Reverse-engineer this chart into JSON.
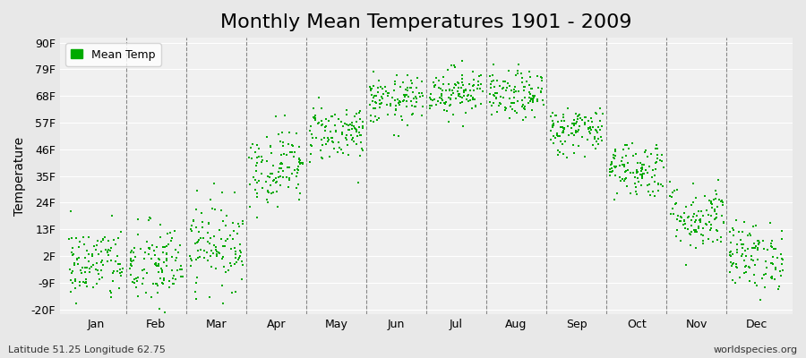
{
  "title": "Monthly Mean Temperatures 1901 - 2009",
  "ylabel": "Temperature",
  "xlabel": "",
  "ytick_labels": [
    "-20F",
    "-9F",
    "2F",
    "13F",
    "24F",
    "35F",
    "46F",
    "57F",
    "68F",
    "79F",
    "90F"
  ],
  "ytick_values": [
    -20,
    -9,
    2,
    13,
    24,
    35,
    46,
    57,
    68,
    79,
    90
  ],
  "ylim": [
    -22,
    92
  ],
  "months": [
    "Jan",
    "Feb",
    "Mar",
    "Apr",
    "May",
    "Jun",
    "Jul",
    "Aug",
    "Sep",
    "Oct",
    "Nov",
    "Dec"
  ],
  "dot_color": "#00aa00",
  "bg_color": "#e8e8e8",
  "plot_bg_color": "#f0f0f0",
  "grid_color": "#ffffff",
  "dashed_line_color": "#888888",
  "title_fontsize": 16,
  "label_fontsize": 10,
  "tick_fontsize": 9,
  "legend_label": "Mean Temp",
  "footer_left": "Latitude 51.25 Longitude 62.75",
  "footer_right": "worldspecies.org",
  "lat": 51.25,
  "lon": 62.75,
  "n_years": 109,
  "seed": 42,
  "monthly_means_f": [
    -1.5,
    -2.0,
    7.0,
    39.0,
    53.0,
    66.0,
    70.0,
    68.0,
    54.0,
    38.0,
    18.0,
    2.0
  ],
  "monthly_stds_f": [
    8.0,
    9.0,
    9.0,
    8.0,
    6.0,
    5.0,
    5.0,
    5.0,
    5.0,
    6.0,
    7.0,
    7.0
  ]
}
